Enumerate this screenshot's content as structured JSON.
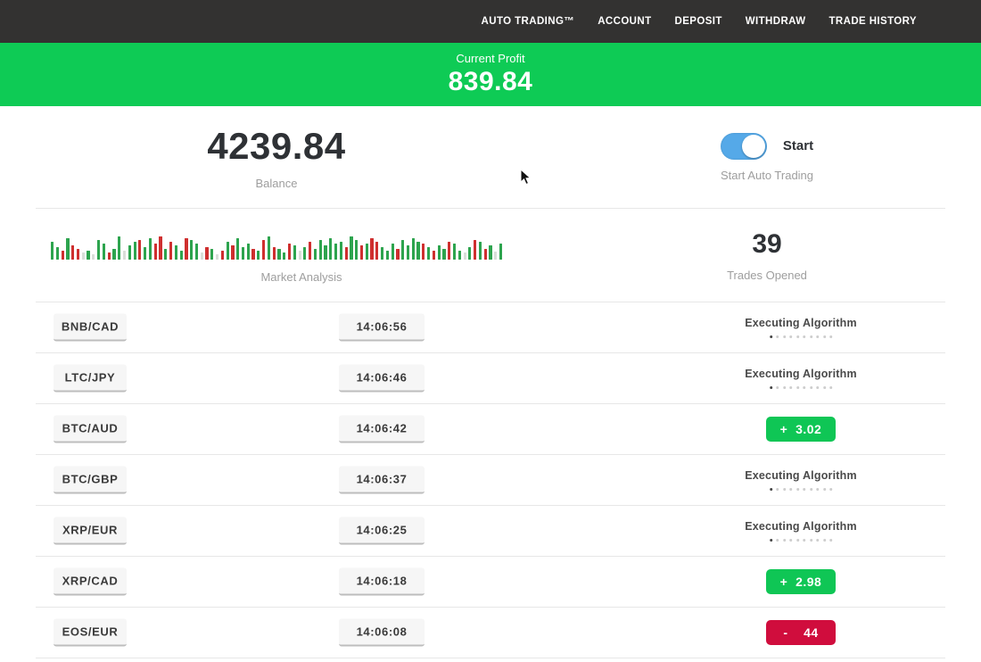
{
  "colors": {
    "navbar_bg": "#333231",
    "banner_green": "#0ecb55",
    "profit_green": "#0fc655",
    "loss_red": "#d00d3d",
    "toggle_blue": "#55a9e8",
    "chart_green": "#2da44e",
    "chart_red": "#cf2f2f",
    "chart_pale": "#d8ded8"
  },
  "navbar": {
    "items": [
      {
        "id": "auto-trading",
        "label": "AUTO TRADING™"
      },
      {
        "id": "account",
        "label": "ACCOUNT"
      },
      {
        "id": "deposit",
        "label": "DEPOSIT"
      },
      {
        "id": "withdraw",
        "label": "WITHDRAW"
      },
      {
        "id": "trade-history",
        "label": "TRADE HISTORY"
      }
    ]
  },
  "banner": {
    "label": "Current Profit",
    "value": "839.84"
  },
  "summary": {
    "balance_value": "4239.84",
    "balance_label": "Balance",
    "toggle_label": "Start",
    "toggle_state": "on",
    "auto_trading_label": "Start Auto Trading",
    "trades_opened_value": "39",
    "trades_opened_label": "Trades Opened"
  },
  "status": {
    "executing_label": "Executing Algorithm",
    "dots_count": 10
  },
  "trades": [
    {
      "pair": "BNB/CAD",
      "time": "14:06:56",
      "result": null
    },
    {
      "pair": "LTC/JPY",
      "time": "14:06:46",
      "result": null
    },
    {
      "pair": "BTC/AUD",
      "time": "14:06:42",
      "result": "+  3.02",
      "outcome": "profit"
    },
    {
      "pair": "BTC/GBP",
      "time": "14:06:37",
      "result": null
    },
    {
      "pair": "XRP/EUR",
      "time": "14:06:25",
      "result": null
    },
    {
      "pair": "XRP/CAD",
      "time": "14:06:18",
      "result": "+  2.98",
      "outcome": "profit"
    },
    {
      "pair": "EOS/EUR",
      "time": "14:06:08",
      "result": "-    44",
      "outcome": "loss"
    }
  ],
  "chart_data": {
    "type": "bar",
    "title": "Market Analysis",
    "note": "decorative market-tick strip; codes are color+height(px): g=green up, r=red down, p=pale neutral",
    "bars": [
      "g20",
      "g14",
      "r10",
      "g24",
      "r16",
      "r12",
      "p8",
      "g10",
      "p6",
      "g22",
      "g18",
      "r8",
      "g12",
      "g26",
      "p10",
      "g16",
      "g20",
      "r22",
      "g14",
      "g24",
      "r18",
      "r26",
      "g12",
      "r20",
      "g16",
      "g10",
      "r24",
      "g22",
      "g18",
      "p8",
      "r14",
      "g12",
      "p6",
      "r10",
      "g20",
      "r16",
      "g24",
      "g14",
      "g18",
      "r12",
      "g10",
      "r22",
      "g26",
      "r14",
      "g12",
      "g8",
      "r18",
      "g16",
      "p10",
      "g14",
      "r20",
      "g12",
      "g22",
      "g16",
      "g24",
      "g18",
      "g20",
      "r14",
      "g26",
      "g22",
      "r16",
      "g18",
      "r24",
      "r20",
      "g14",
      "g10",
      "g18",
      "r12",
      "g22",
      "g16",
      "g24",
      "g20",
      "r18",
      "g14",
      "r10",
      "g16",
      "g12",
      "r20",
      "g18",
      "g10",
      "p8",
      "g14",
      "r22",
      "g20",
      "r12",
      "g16",
      "p9",
      "g18"
    ]
  }
}
